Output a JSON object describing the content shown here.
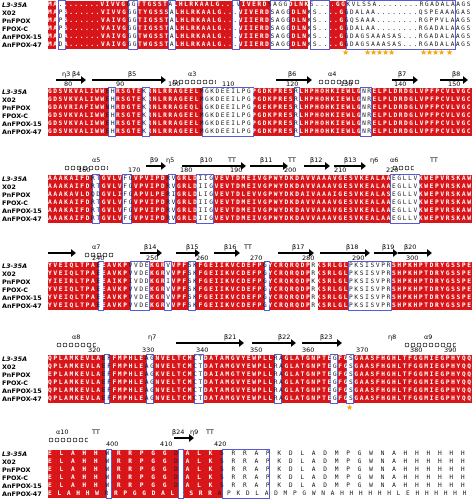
{
  "seq_names": [
    "L3-35A",
    "X02",
    "PnFPOX",
    "FPOX-C",
    "AnFPOX-15",
    "AnFPOX-47"
  ],
  "colors": {
    "conserved": "#d8161a",
    "similar": "#d8161a",
    "frame": "#5a5ad6",
    "star": "#f5a500"
  },
  "top_strip": {
    "seqs": [
      "MA........VIVVGGGTTGSSTALHLRKAALG...VIVERDSAGGDLNKS....GGKVLSSA........RGADALAAGS",
      "MAPS......VIVVGGGTYGSSSALHLRKAALG...VIVERDSAGGDLNKS....GGDALAA........QSPEAAAGAS",
      "MAPS......VAIVGGGTIGSSTALHLRKAALG...VIIERDSAGGDLNKS....GGQSAAA........RGPPVLAAGS",
      "MAPS......VAIVGGGTIGSSTALHLRKAALG...VIIERDSAGGDLNKS....GGDALAA........RGADALAAGS",
      "MADA......VAIVGGGTWGSSTALHLRKAALG...VIIERDSAGGDLNKS....GGDAGSAAASAS...RGADALAAGS",
      "MADA......VAIVGGGTWGSSTALHLRKAALG...VIIERDSAGGDLNKS....GGDAGSAAASAS...RGADALAAGS"
    ]
  },
  "blocks": [
    {
      "ss": [
        "η3",
        "β4",
        "β5",
        "α3",
        "β6",
        "α4",
        "β7",
        "β8"
      ],
      "numbers": [
        "80",
        "90",
        "100",
        "110",
        "120",
        "130",
        "140",
        "150"
      ],
      "seqs": [
        "GDSVKVALIWWEHRSGTEKRNLRRAGEELMGKDEEILPGPGDKPRESRLHPHOHKIEWLGNRELPLDRDGLVPFPCVLVGC",
        "GDSVKVALIWWEHRSGTEKRNLRRAGEELMGKDEEILPGPGDKPRESRLHPHOHKIEWLGNRELPLDRDGLVPFPCVLVGC",
        "GDAVRIAFIWWNHRDGTEKRNLRRAGEQLLGKDEEILPGPGEKPRESRLHPHOHKIEWLGNRELPLDRDGLVPFPCVLVGC",
        "GDSVKVALIWWEHRSGTEKRNLRRAGEELMGKDEEILPGPGDKPRESRLHPHOHKIEWLGNRELPLDRDGLVPFPCVLVGC",
        "GDSVKVALIWWEHRSGTEKRNLRRAGEELMGKDEEILPGPGDKPRESRLHPHOHKIEWLGNRELPLDRDGLVPFPCVLVGC",
        "GDSVKVALIWWEHRSGTEKRNLRRAGEELMGKDEEILPGPGDKPRESRLHPHOHKIEWLGNRELPLDRDGLVPFPCVLVGC"
      ]
    },
    {
      "ss": [
        "α5",
        "β9",
        "η5",
        "β10",
        "TT",
        "β11",
        "TT",
        "β12",
        "β13",
        "η6",
        "α6",
        "TT"
      ],
      "numbers": [
        "160",
        "170",
        "180",
        "190",
        "200",
        "210",
        "220"
      ],
      "seqs": [
        "AAAKAIFDRTGVLVFGVPVIPDRVGRLDIIGVEVTDMEIVGPWYDKDAVVAAAVGESVKEALAAEGLLVKWEPVRSKAW",
        "AAAKAIFDRTGVLVFGVPVIPDRVGRLDIIGVEVTDMEIVGPWYDKDAVVAAAVGESVKEALAAEGLLVKWEPVRSKAW",
        "AAAKAVLDQDGVLIFGAPVLPERIGRLDLIGVEVTDLEVVGPWYDKDAIVAAAIGESVKEALASEGLLVKWEPVRSKAW",
        "AAAKAIFDRTGVLVFGVPVIPDRVGRLDIIGVEVTDMEIVGPWYDKDAVVAAAVGESVKEALAAEGLLVKWEPVRSKAW",
        "AAAKAIFDRTGVLVFGVPVIPDRVGRLDIIGVEVTDMEIVGPWYDKDAVVAAAVGESVKEALAAEGLLVKWEPVRSKAW",
        "AAAKAIFDRTGVLVFGVPVIPDRVGRLDIIGVEVTDMEIVGPWYDKDAVVAAAVGESVKEALAAEGLLVKWEPVRSKAW"
      ]
    },
    {
      "ss": [
        "α7",
        "β14",
        "β15",
        "β16",
        "TT",
        "β17",
        "β18",
        "β19",
        "β20"
      ],
      "numbers": [
        "240",
        "250",
        "260",
        "270",
        "280",
        "290",
        "300"
      ],
      "seqs": [
        "YVEIQLTPAEEAVKPVVDEKGRVVPFSKFGEIIKVCDEFPGYCRQRQDPRKSRLGLPKSISVPRSHPKHPTDRYGSSPE",
        "YVEIQLTPAEEAVKPVVDEKGRVVPFSKFGEIIKVCDEFPGYCRQRQDPRKSRLGLPKSISVPRSHPKHPTDRYGSSPE",
        "YIEIRLTPAEEAIKPIVDDKGRIVPFSKFGEIIKVCDEFPGYCRQKQDPKKSRLGLPKSISVPRSHPKHPTDRYGSSPE",
        "YVEIQLTPAEEAVKPVVDEKGRVVPFSKFGEIIKVCDEFPGYCRQRQDPRKSRLGLPKSISVPRSHPKHPTDRYGSSPE",
        "YVEIQLTPAEEAVKPVVDEKGRVVPFSKFGEIIKVCDEFPGYCRQRQDPRKSRLGLPKSISVPRSHPKHPTDRYGSSPE",
        "YVEIQLTPAEEAVKPVVDEKGRVVPFSKFGEIIKVCDEFPGYCRQRQDPRKSRLGLPKSISVPRSHPKHPTDRYGSSPE"
      ]
    },
    {
      "ss": [
        "α8",
        "η7",
        "β21",
        "β22",
        "β23",
        "η8",
        "α9"
      ],
      "numbers": [
        "320",
        "330",
        "340",
        "350",
        "360",
        "370",
        "380",
        "390"
      ],
      "seqs": [
        "QPLAMKEVLAEFFMPHLEAGNVELTCMCTDATAMGVYEWPLLRAGLATGNPTEGFGSGAASFHGHLTFGGMIEGPHYQQ",
        "QPLAMKEVLAEFFMPHLEAGNVELTCMCTDATAMGVYEWPLLRAGLATGNPTEGFGSGAASFHGHLTFGGMIEGPHYQQ",
        "EPLAMKEVLAEFFMPHLEAGKVELTCMCTDAIAMGTYEWPLLRAGLATGNPTEGFGSGAASFHGHLTFGGMIEGPHYQQ",
        "QPLAMKEVLAEFFMPHLEAGNVELTCMCTDATAMGVYEWPLLRAGLATGNPTEGFGSGAASFHGHLTFGGMIEGPHYQQ",
        "QPLAMKEVLAEFFMPHLEAGNVELTCMCTDATAMGVYEWPLLRAGLATGNPTEGFGSGAASFHGHLTFGGMIEGPHYQQ",
        "QPLAMKEVLAEFFMPHLEAGNVELTCMCTDATAMGVYEWPLLRAGLATGNPTEGFGSGAASFHGHLTFGGMIEGPHYQQ"
      ]
    },
    {
      "ss": [
        "α10",
        "TT",
        "β24",
        "η9",
        "TT"
      ],
      "numbers": [
        "400",
        "410",
        "420"
      ],
      "seqs": [
        "ELAHHWRRPGGDALKSRRAPKDLADMPGWNAHHHHHH",
        "ELAHHWRRPGGDALKSRRAPKDLADMPGWNAHHHHHH",
        "ELAHHWRRPGGDALKSRRAPKDLADMPGWNAHHHHHH",
        "ELAHHWRRPGGDALKSRRAPKDLADMPGWNAHHHHHH",
        "ELAHHWRRPGGDALKSRRAPKDLADMPGWNAHHHHHH",
        "ELAHHWRRPGGDALKSRRAPKDLADMPGWNAHHHHHHLEHHHHHH"
      ]
    }
  ]
}
